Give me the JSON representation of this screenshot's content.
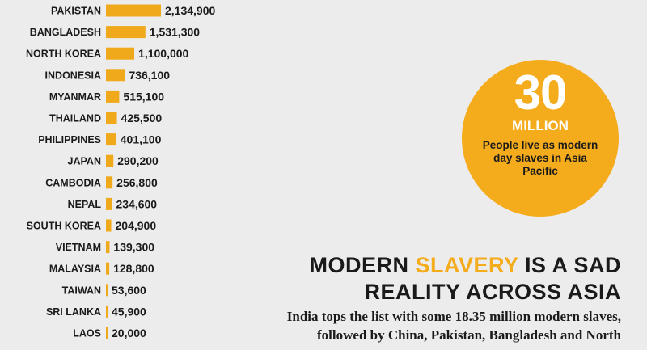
{
  "chart_data": {
    "type": "bar",
    "orientation": "horizontal",
    "categories": [
      "PAKISTAN",
      "BANGLADESH",
      "NORTH KOREA",
      "INDONESIA",
      "MYANMAR",
      "THAILAND",
      "PHILIPPINES",
      "JAPAN",
      "CAMBODIA",
      "NEPAL",
      "SOUTH KOREA",
      "VIETNAM",
      "MALAYSIA",
      "TAIWAN",
      "SRI LANKA",
      "LAOS"
    ],
    "values": [
      2134900,
      1531300,
      1100000,
      736100,
      515100,
      425500,
      401100,
      290200,
      256800,
      234600,
      204900,
      139300,
      128800,
      53600,
      45900,
      20000
    ],
    "labels": [
      "2,134,900",
      "1,531,300",
      "1,100,000",
      "736,100",
      "515,100",
      "425,500",
      "401,100",
      "290,200",
      "256,800",
      "234,600",
      "204,900",
      "139,300",
      "128,800",
      "53,600",
      "45,900",
      "20,000"
    ],
    "bar_color": "#f0a91b"
  },
  "callout": {
    "number": "30",
    "unit": "MILLION",
    "text": "People live as modern day slaves in Asia Pacific",
    "color": "#f4ab1c"
  },
  "headline": {
    "before": "MODERN ",
    "highlight": "SLAVERY",
    "after": " IS A SAD",
    "line2": "REALITY ACROSS ASIA",
    "highlight_color": "#f4ab1c"
  },
  "body": {
    "line1": "India tops the list with some 18.35 million modern slaves,",
    "line2": "followed by China, Pakistan, Bangladesh and North"
  }
}
